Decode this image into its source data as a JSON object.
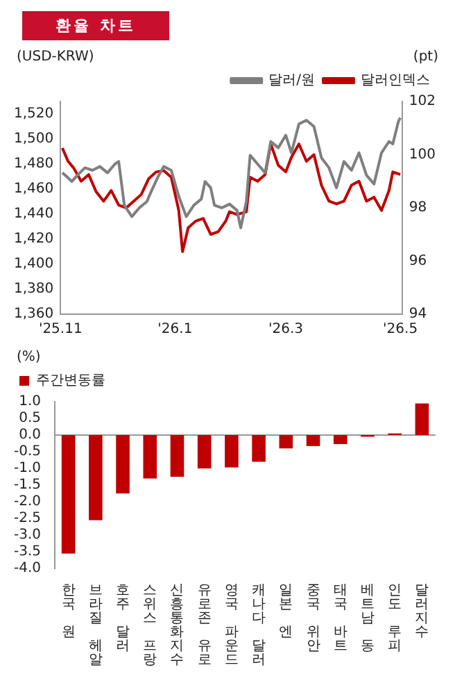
{
  "chart_data": [
    {
      "type": "line",
      "title": "환율 차트",
      "ylabel": "(USD-KRW)",
      "y2label": "(pt)",
      "legend": "top right",
      "grid": false,
      "marker": "none",
      "line_style": "solid",
      "xlim": [
        "2025-11-01",
        "2026-05-02"
      ],
      "xticks": [
        {
          "value": "2025-11-01",
          "label": "'25.11"
        },
        {
          "value": "2026-01-01",
          "label": "'26.1"
        },
        {
          "value": "2026-03-01",
          "label": "'26.3"
        },
        {
          "value": "2026-05-01",
          "label": "'26.5"
        }
      ],
      "ylim": [
        1360,
        1530
      ],
      "yticks": [
        {
          "value": 1360,
          "label": "1,360"
        },
        {
          "value": 1380,
          "label": "1,380"
        },
        {
          "value": 1400,
          "label": "1,400"
        },
        {
          "value": 1420,
          "label": "1,420"
        },
        {
          "value": 1440,
          "label": "1,440"
        },
        {
          "value": 1460,
          "label": "1,460"
        },
        {
          "value": 1480,
          "label": "1,480"
        },
        {
          "value": 1500,
          "label": "1,500"
        },
        {
          "value": 1520,
          "label": "1,520"
        }
      ],
      "y2lim": [
        94,
        102
      ],
      "y2ticks": [
        94,
        96,
        98,
        100,
        102
      ],
      "series": [
        {
          "name": "달러/원",
          "color": "#7f7f7f",
          "x": [
            "2025-11-02",
            "2025-11-05",
            "2025-11-07",
            "2025-11-10",
            "2025-11-14",
            "2025-11-18",
            "2025-11-22",
            "2025-11-26",
            "2025-11-30",
            "2025-12-02",
            "2025-12-05",
            "2025-12-09",
            "2025-12-13",
            "2025-12-17",
            "2025-12-19",
            "2025-12-23",
            "2025-12-26",
            "2025-12-30",
            "2026-01-03",
            "2026-01-07",
            "2026-01-11",
            "2026-01-15",
            "2026-01-17",
            "2026-01-20",
            "2026-01-22",
            "2026-01-26",
            "2026-01-30",
            "2026-02-03",
            "2026-02-05",
            "2026-02-08",
            "2026-02-10",
            "2026-02-14",
            "2026-02-18",
            "2026-02-21",
            "2026-02-25",
            "2026-03-01",
            "2026-03-04",
            "2026-03-08",
            "2026-03-12",
            "2026-03-16",
            "2026-03-20",
            "2026-03-24",
            "2026-03-28",
            "2026-04-01",
            "2026-04-05",
            "2026-04-09",
            "2026-04-13",
            "2026-04-17",
            "2026-04-21",
            "2026-04-25",
            "2026-04-27",
            "2026-04-30",
            "2026-05-01"
          ],
          "values": [
            1473,
            1469,
            1466,
            1471,
            1477,
            1475,
            1478,
            1473,
            1480,
            1482,
            1447,
            1438,
            1445,
            1450,
            1457,
            1470,
            1478,
            1475,
            1454,
            1438,
            1447,
            1452,
            1466,
            1461,
            1447,
            1445,
            1448,
            1443,
            1429,
            1450,
            1487,
            1480,
            1473,
            1498,
            1493,
            1503,
            1489,
            1512,
            1515,
            1510,
            1485,
            1477,
            1461,
            1482,
            1475,
            1489,
            1471,
            1464,
            1489,
            1498,
            1496,
            1514,
            1517
          ]
        },
        {
          "name": "달러인덱스",
          "color": "#c00000",
          "axis": "y2",
          "x": [
            "2025-11-02",
            "2025-11-05",
            "2025-11-08",
            "2025-11-12",
            "2025-11-16",
            "2025-11-20",
            "2025-11-24",
            "2025-11-28",
            "2025-12-02",
            "2025-12-06",
            "2025-12-10",
            "2025-12-14",
            "2025-12-18",
            "2025-12-22",
            "2025-12-26",
            "2025-12-30",
            "2026-01-03",
            "2026-01-05",
            "2026-01-08",
            "2026-01-12",
            "2026-01-16",
            "2026-01-20",
            "2026-01-24",
            "2026-01-28",
            "2026-01-30",
            "2026-02-03",
            "2026-02-08",
            "2026-02-10",
            "2026-02-14",
            "2026-02-18",
            "2026-02-21",
            "2026-02-25",
            "2026-03-01",
            "2026-03-04",
            "2026-03-08",
            "2026-03-12",
            "2026-03-16",
            "2026-03-20",
            "2026-03-24",
            "2026-03-28",
            "2026-04-01",
            "2026-04-05",
            "2026-04-09",
            "2026-04-13",
            "2026-04-17",
            "2026-04-21",
            "2026-04-25",
            "2026-04-27",
            "2026-05-01"
          ],
          "values": [
            100.25,
            99.75,
            99.5,
            99.0,
            99.25,
            98.6,
            98.25,
            98.65,
            98.1,
            98.0,
            98.25,
            98.5,
            99.1,
            99.35,
            99.4,
            99.15,
            97.9,
            96.35,
            97.25,
            97.5,
            97.6,
            97.0,
            97.1,
            97.5,
            97.85,
            97.75,
            97.85,
            99.15,
            99.0,
            99.25,
            100.4,
            99.6,
            99.35,
            99.9,
            100.4,
            99.75,
            100.0,
            98.85,
            98.25,
            98.15,
            98.25,
            98.85,
            99.0,
            98.25,
            98.4,
            97.9,
            98.65,
            99.35,
            99.25
          ]
        }
      ]
    },
    {
      "type": "bar",
      "ylabel": "(%)",
      "legend": "top left",
      "grid": false,
      "ref_lines": [
        {
          "axis": "y",
          "value": 0,
          "color": "#999999"
        }
      ],
      "categories": [
        "한국 원",
        "브라질 헤알",
        "호주 달러",
        "스위스 프랑",
        "신흥통화지수",
        "유로존 유로",
        "영국 파운드",
        "캐나다 달러",
        "일본 엔",
        "중국 위안",
        "태국 바트",
        "베트남 동",
        "인도 루피",
        "달러지수"
      ],
      "ylim": [
        -4,
        1
      ],
      "yticks": [
        {
          "value": -4,
          "label": "-4.0"
        },
        {
          "value": -3.5,
          "label": "-3.5"
        },
        {
          "value": -3,
          "label": "-3.0"
        },
        {
          "value": -2.5,
          "label": "-2.5"
        },
        {
          "value": -2,
          "label": "-2.0"
        },
        {
          "value": -1.5,
          "label": "-1.5"
        },
        {
          "value": -1,
          "label": "-1.0"
        },
        {
          "value": -0.5,
          "label": "-0.5"
        },
        {
          "value": 0,
          "label": "0.0"
        },
        {
          "value": 0.5,
          "label": "0.5"
        },
        {
          "value": 1,
          "label": "1.0"
        }
      ],
      "series": [
        {
          "name": "주간변동률",
          "color": "#c00000",
          "values": [
            -3.55,
            -2.55,
            -1.75,
            -1.3,
            -1.25,
            -1.0,
            -0.97,
            -0.8,
            -0.4,
            -0.33,
            -0.27,
            -0.05,
            0.05,
            0.95
          ]
        }
      ]
    }
  ]
}
